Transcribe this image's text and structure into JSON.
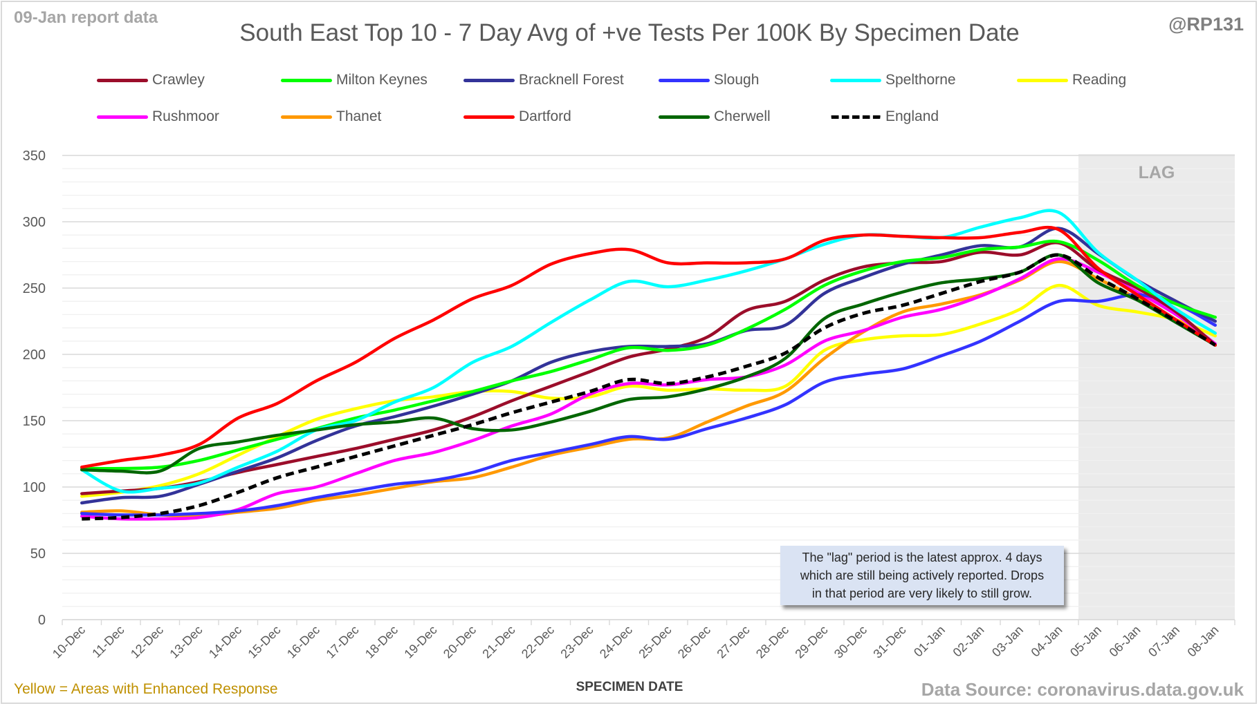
{
  "header": {
    "report_date": "09-Jan report data",
    "title": "South East Top 10 - 7 Day Avg of +ve Tests Per 100K By Specimen Date",
    "handle": "@RP131"
  },
  "footer": {
    "note_left": "Yellow = Areas with Enhanced Response",
    "source": "Data Source: coronavirus.data.gov.uk"
  },
  "annotation": {
    "lag_label": "LAG",
    "note_lines": [
      "The \"lag\" period is the latest approx. 4 days",
      "which are still being actively reported.  Drops",
      "in that period are very likely to still grow."
    ]
  },
  "chart_data": {
    "type": "line",
    "title": "South East Top 10 - 7 Day Avg of +ve Tests Per 100K By Specimen Date",
    "xlabel": "SPECIMEN DATE",
    "ylabel": "",
    "ylim": [
      0,
      350
    ],
    "yticks": [
      0,
      50,
      100,
      150,
      200,
      250,
      300,
      350
    ],
    "minor_grid_step": 10,
    "grid": true,
    "legend_position": "top",
    "lag_region": {
      "from": "05-Jan",
      "to": "08-Jan"
    },
    "x": [
      "10-Dec",
      "11-Dec",
      "12-Dec",
      "13-Dec",
      "14-Dec",
      "15-Dec",
      "16-Dec",
      "17-Dec",
      "18-Dec",
      "19-Dec",
      "20-Dec",
      "21-Dec",
      "22-Dec",
      "23-Dec",
      "24-Dec",
      "25-Dec",
      "26-Dec",
      "27-Dec",
      "28-Dec",
      "29-Dec",
      "30-Dec",
      "31-Dec",
      "01-Jan",
      "02-Jan",
      "03-Jan",
      "04-Jan",
      "05-Jan",
      "06-Jan",
      "07-Jan",
      "08-Jan"
    ],
    "series": [
      {
        "name": "Crawley",
        "color": "#9b0d2a",
        "dashed": false,
        "values": [
          95,
          97,
          99,
          104,
          111,
          117,
          123,
          129,
          136,
          143,
          153,
          165,
          176,
          187,
          198,
          204,
          213,
          233,
          240,
          256,
          266,
          269,
          270,
          277,
          275,
          284,
          264,
          250,
          232,
          207
        ]
      },
      {
        "name": "Milton Keynes",
        "color": "#00ff00",
        "dashed": false,
        "values": [
          114,
          114,
          115,
          120,
          128,
          136,
          144,
          152,
          158,
          165,
          172,
          180,
          187,
          196,
          205,
          203,
          207,
          219,
          234,
          252,
          263,
          270,
          273,
          279,
          281,
          285,
          271,
          252,
          238,
          228
        ]
      },
      {
        "name": "Bracknell Forest",
        "color": "#333399",
        "dashed": false,
        "values": [
          88,
          92,
          93,
          102,
          112,
          122,
          135,
          146,
          153,
          161,
          170,
          180,
          194,
          202,
          206,
          206,
          208,
          218,
          222,
          246,
          258,
          268,
          275,
          282,
          281,
          295,
          276,
          256,
          240,
          225
        ]
      },
      {
        "name": "Slough",
        "color": "#3333ff",
        "dashed": false,
        "values": [
          80,
          79,
          79,
          80,
          82,
          86,
          92,
          97,
          102,
          105,
          111,
          120,
          126,
          132,
          138,
          136,
          144,
          152,
          162,
          179,
          185,
          189,
          199,
          210,
          225,
          240,
          240,
          245,
          238,
          222
        ]
      },
      {
        "name": "Spelthorne",
        "color": "#00ffff",
        "dashed": false,
        "values": [
          113,
          97,
          99,
          103,
          115,
          127,
          143,
          150,
          164,
          175,
          194,
          206,
          224,
          241,
          255,
          251,
          256,
          263,
          272,
          283,
          290,
          289,
          288,
          296,
          303,
          307,
          277,
          256,
          234,
          216
        ]
      },
      {
        "name": "Reading",
        "color": "#ffff00",
        "dashed": false,
        "values": [
          93,
          96,
          101,
          110,
          124,
          138,
          151,
          159,
          165,
          168,
          172,
          172,
          167,
          168,
          176,
          173,
          174,
          173,
          176,
          203,
          211,
          214,
          215,
          223,
          234,
          252,
          237,
          232,
          226,
          214
        ]
      },
      {
        "name": "Rushmoor",
        "color": "#ff00ff",
        "dashed": false,
        "values": [
          78,
          76,
          76,
          77,
          83,
          95,
          100,
          110,
          120,
          126,
          135,
          146,
          155,
          170,
          178,
          177,
          181,
          183,
          192,
          210,
          218,
          228,
          234,
          244,
          257,
          272,
          262,
          247,
          230,
          208
        ]
      },
      {
        "name": "Thanet",
        "color": "#ff9900",
        "dashed": false,
        "values": [
          81,
          82,
          79,
          78,
          81,
          84,
          90,
          94,
          99,
          104,
          107,
          115,
          124,
          130,
          136,
          137,
          149,
          161,
          172,
          197,
          217,
          232,
          238,
          245,
          256,
          270,
          257,
          242,
          226,
          207
        ]
      },
      {
        "name": "Dartford",
        "color": "#ff0000",
        "dashed": false,
        "values": [
          115,
          120,
          124,
          132,
          152,
          163,
          180,
          194,
          212,
          226,
          242,
          252,
          268,
          276,
          279,
          269,
          269,
          269,
          272,
          286,
          290,
          289,
          288,
          288,
          292,
          294,
          265,
          245,
          226,
          207
        ]
      },
      {
        "name": "Cherwell",
        "color": "#006600",
        "dashed": false,
        "values": [
          113,
          112,
          112,
          129,
          134,
          139,
          143,
          147,
          149,
          152,
          144,
          143,
          149,
          157,
          166,
          168,
          174,
          183,
          197,
          227,
          238,
          247,
          254,
          257,
          262,
          275,
          254,
          241,
          224,
          207
        ]
      },
      {
        "name": "England",
        "color": "#000000",
        "dashed": true,
        "values": [
          76,
          77,
          80,
          86,
          96,
          107,
          115,
          123,
          131,
          139,
          147,
          156,
          164,
          172,
          181,
          178,
          183,
          191,
          201,
          220,
          231,
          237,
          246,
          255,
          262,
          275,
          258,
          242,
          225,
          207
        ]
      }
    ]
  }
}
